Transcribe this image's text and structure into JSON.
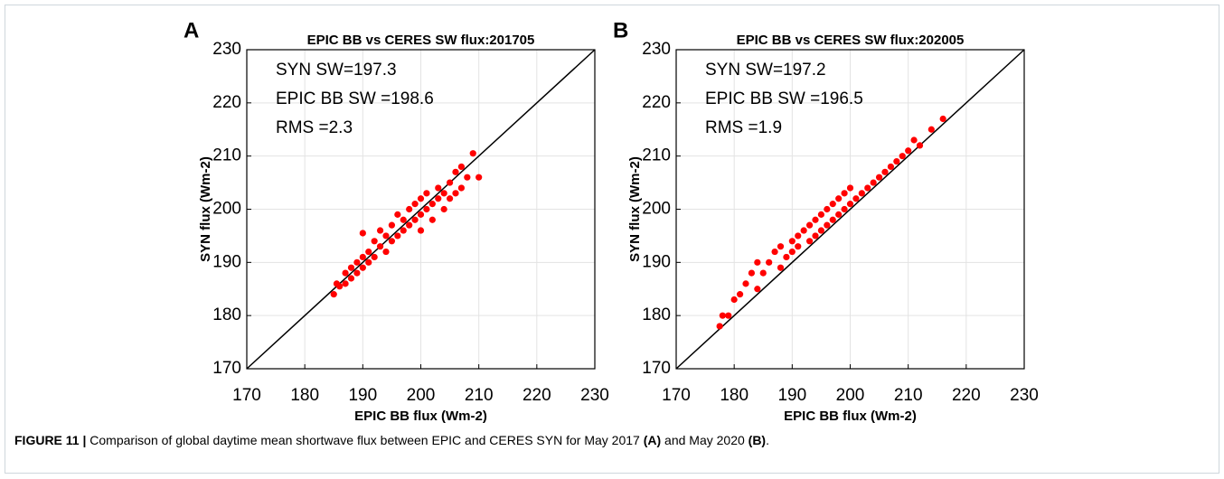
{
  "chart_data": [
    {
      "type": "scatter",
      "panel_label": "A",
      "title": "EPIC BB vs CERES SW flux:201705",
      "xlabel": "EPIC BB flux (Wm-2)",
      "ylabel": "SYN flux (Wm-2)",
      "annotations": [
        "SYN SW=197.3",
        "EPIC BB SW =198.6",
        "RMS =2.3"
      ],
      "color": "#ff0000",
      "grid": true,
      "xlim": [
        170,
        230
      ],
      "ylim": [
        170,
        230
      ],
      "xticks": [
        170,
        180,
        190,
        200,
        210,
        220,
        230
      ],
      "yticks": [
        170,
        180,
        190,
        200,
        210,
        220,
        230
      ],
      "x": [
        185,
        185.5,
        186,
        187,
        187,
        188,
        188,
        189,
        189,
        190,
        190,
        190,
        191,
        191,
        192,
        192,
        193,
        193,
        194,
        194,
        195,
        195,
        196,
        196,
        197,
        197,
        198,
        198,
        199,
        199,
        200,
        200,
        200,
        201,
        201,
        202,
        202,
        203,
        203,
        204,
        204,
        205,
        205,
        206,
        206,
        207,
        207,
        208,
        209,
        210
      ],
      "y": [
        184,
        186,
        185.5,
        188,
        186,
        189,
        187,
        190,
        188,
        191,
        189,
        195.5,
        192,
        190,
        194,
        191,
        193,
        196,
        192,
        195,
        197,
        194,
        195,
        199,
        196,
        198,
        200,
        197,
        198,
        201,
        199,
        202,
        196,
        200,
        203,
        201,
        198,
        204,
        202,
        203,
        200,
        205,
        202,
        207,
        203,
        208,
        204,
        206,
        210.5,
        206
      ]
    },
    {
      "type": "scatter",
      "panel_label": "B",
      "title": "EPIC BB vs CERES SW flux:202005",
      "xlabel": "EPIC BB flux (Wm-2)",
      "ylabel": "SYN flux (Wm-2)",
      "annotations": [
        "SYN SW=197.2",
        "EPIC BB SW =196.5",
        "RMS =1.9"
      ],
      "color": "#ff0000",
      "grid": true,
      "xlim": [
        170,
        230
      ],
      "ylim": [
        170,
        230
      ],
      "xticks": [
        170,
        180,
        190,
        200,
        210,
        220,
        230
      ],
      "yticks": [
        170,
        180,
        190,
        200,
        210,
        220,
        230
      ],
      "x": [
        177.5,
        178,
        179,
        180,
        181,
        182,
        183,
        184,
        184,
        185,
        186,
        187,
        188,
        188,
        189,
        190,
        190,
        191,
        191,
        192,
        193,
        193,
        194,
        194,
        195,
        195,
        196,
        196,
        197,
        197,
        198,
        198,
        199,
        199,
        200,
        200,
        201,
        202,
        203,
        204,
        205,
        206,
        207,
        208,
        209,
        210,
        211,
        212,
        214,
        216
      ],
      "y": [
        178,
        180,
        180,
        183,
        184,
        186,
        188,
        185,
        190,
        188,
        190,
        192,
        189,
        193,
        191,
        194,
        192,
        195,
        193,
        196,
        194,
        197,
        198,
        195,
        196,
        199,
        197,
        200,
        198,
        201,
        199,
        202,
        200,
        203,
        201,
        204,
        202,
        203,
        204,
        205,
        206,
        207,
        208,
        209,
        210,
        211,
        213,
        212,
        215,
        217
      ]
    }
  ],
  "caption": [
    {
      "text": "FIGURE 11 |",
      "bold": true
    },
    {
      "text": " Comparison of global daytime mean shortwave flux between EPIC and CERES SYN for May 2017 ",
      "bold": false
    },
    {
      "text": "(A)",
      "bold": true
    },
    {
      "text": " and May 2020 ",
      "bold": false
    },
    {
      "text": "(B)",
      "bold": true
    },
    {
      "text": ".",
      "bold": false
    }
  ]
}
